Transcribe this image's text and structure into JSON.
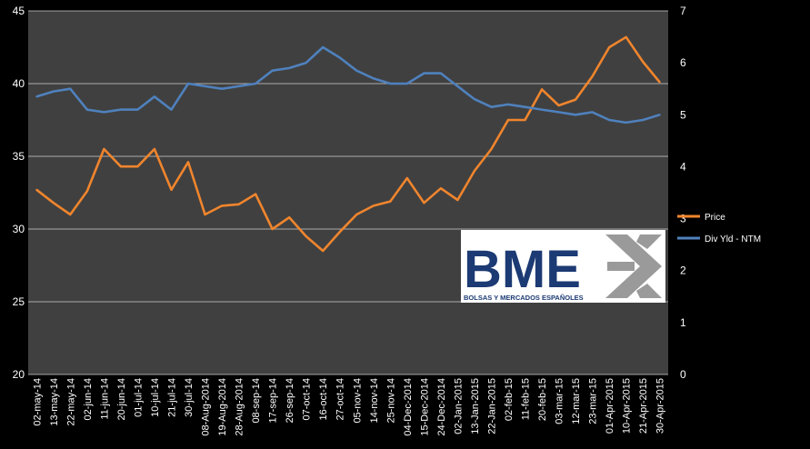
{
  "chart_data": {
    "type": "line",
    "x": [
      "02-may-14",
      "13-may-14",
      "22-may-14",
      "02-jun-14",
      "11-jun-14",
      "20-jun-14",
      "01-jul-14",
      "10-jul-14",
      "21-jul-14",
      "30-jul-14",
      "08-Aug-2014",
      "19-Aug-2014",
      "28-Aug-2014",
      "08-sep-14",
      "17-sep-14",
      "26-sep-14",
      "07-oct-14",
      "16-oct-14",
      "27-oct-14",
      "05-nov-14",
      "14-nov-14",
      "25-nov-14",
      "04-Dec-2014",
      "15-Dec-2014",
      "24-Dec-2014",
      "02-Jan-2015",
      "13-Jan-2015",
      "22-Jan-2015",
      "02-feb-15",
      "11-feb-15",
      "20-feb-15",
      "03-mar-15",
      "12-mar-15",
      "23-mar-15",
      "01-Apr-2015",
      "10-Apr-2015",
      "21-Apr-2015",
      "30-Apr-2015"
    ],
    "y_left": {
      "ticks": [
        "20",
        "25",
        "30",
        "35",
        "40",
        "45"
      ],
      "min": 20,
      "max": 45
    },
    "y_right": {
      "ticks": [
        "0",
        "1",
        "2",
        "3",
        "4",
        "5",
        "6",
        "7"
      ],
      "min": 0,
      "max": 7
    },
    "series": [
      {
        "name": "Price",
        "axis": "left",
        "color": "#F0852D",
        "values": [
          32.7,
          31.8,
          31.0,
          32.6,
          35.5,
          34.3,
          34.3,
          35.5,
          32.7,
          34.6,
          31.0,
          31.6,
          31.7,
          32.4,
          30.0,
          30.8,
          29.5,
          28.5,
          29.8,
          31.0,
          31.6,
          31.9,
          33.5,
          31.8,
          32.8,
          32.0,
          34.0,
          35.5,
          37.5,
          37.5,
          39.6,
          38.5,
          38.9,
          40.5,
          42.5,
          43.2,
          41.5,
          40.1
        ]
      },
      {
        "name": "Div Yld - NTM",
        "axis": "right",
        "color": "#4F81BD",
        "values": [
          5.35,
          5.45,
          5.5,
          5.1,
          5.05,
          5.1,
          5.1,
          5.35,
          5.1,
          5.6,
          5.55,
          5.5,
          5.55,
          5.6,
          5.85,
          5.9,
          6.0,
          6.3,
          6.1,
          5.85,
          5.7,
          5.6,
          5.6,
          5.8,
          5.8,
          5.55,
          5.3,
          5.15,
          5.2,
          5.15,
          5.1,
          5.05,
          5.0,
          5.05,
          4.9,
          4.85,
          4.9,
          5.0
        ]
      }
    ],
    "legend": {
      "position": "right",
      "entries": [
        "Price",
        "Div Yld - NTM"
      ]
    },
    "grid": true,
    "logo": {
      "text": "BME",
      "subtitle": "BOLSAS Y MERCADOS ESPAÑOLES"
    }
  }
}
